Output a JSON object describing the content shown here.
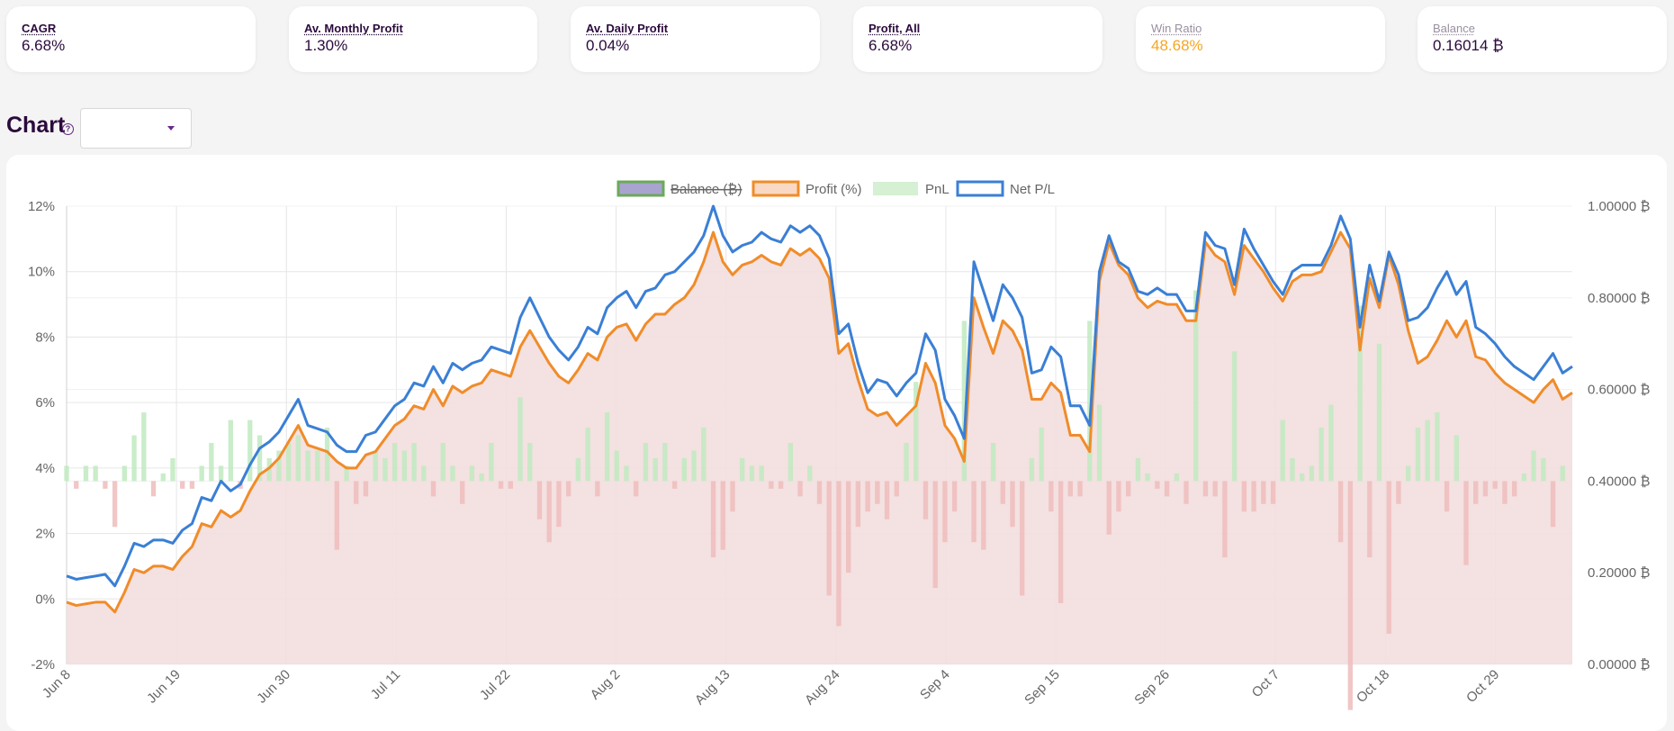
{
  "stats": {
    "cagr": {
      "label": "CAGR",
      "value": "6.68%"
    },
    "monthly": {
      "label": "Av. Monthly Profit",
      "value": "1.30%"
    },
    "daily": {
      "label": "Av. Daily Profit",
      "value": "0.04%"
    },
    "profit_all": {
      "label": "Profit, All",
      "value": "6.68%"
    },
    "win_ratio": {
      "label": "Win Ratio",
      "value": "48.68%"
    },
    "balance": {
      "label": "Balance",
      "value": "0.16014 ₿"
    }
  },
  "chart_section": {
    "title": "Chart",
    "help_icon": "question-circle-icon",
    "dropdown_value": ""
  },
  "colors": {
    "net": "#3a7fd5",
    "profit": "#f08c2a",
    "area_fill": "#f3dede",
    "pnl_pos": "#bfeabf",
    "pnl_neg": "#efbcbc",
    "balance": "#a9a3d0"
  },
  "chart_data": {
    "type": "line",
    "legend": [
      {
        "name": "Balance (₿)",
        "hidden": true
      },
      {
        "name": "Profit (%)"
      },
      {
        "name": "PnL"
      },
      {
        "name": "Net P/L"
      }
    ],
    "legend_position": "top",
    "x_ticks": [
      "Jun 8",
      "Jun 19",
      "Jun 30",
      "Jul 11",
      "Jul 22",
      "Aug 2",
      "Aug 13",
      "Aug 24",
      "Sep 4",
      "Sep 15",
      "Sep 26",
      "Oct 7",
      "Oct 18",
      "Oct 29"
    ],
    "y_left_ticks": [
      "12%",
      "10%",
      "8%",
      "6%",
      "4%",
      "2%",
      "0%",
      "-2%"
    ],
    "y_left_range": [
      -2,
      12
    ],
    "y_right_ticks": [
      "1.00000 ₿",
      "0.80000 ₿",
      "0.60000 ₿",
      "0.40000 ₿",
      "0.20000 ₿",
      "0.00000 ₿"
    ],
    "y_right_range": [
      0,
      1
    ],
    "grid": true,
    "series": [
      {
        "name": "Profit (%)",
        "values": [
          -0.1,
          -0.2,
          -0.15,
          -0.1,
          -0.1,
          -0.4,
          0.2,
          0.9,
          0.8,
          1.0,
          1.0,
          0.9,
          1.3,
          1.6,
          2.3,
          2.2,
          2.7,
          2.5,
          2.7,
          3.3,
          3.8,
          4.0,
          4.3,
          4.8,
          5.3,
          4.7,
          4.6,
          4.5,
          4.2,
          4.0,
          4.0,
          4.4,
          4.5,
          4.9,
          5.3,
          5.5,
          5.9,
          5.8,
          6.4,
          5.9,
          6.5,
          6.3,
          6.5,
          6.6,
          7.0,
          6.9,
          6.8,
          7.7,
          8.2,
          7.7,
          7.2,
          6.8,
          6.6,
          7.0,
          7.5,
          7.3,
          8.0,
          8.3,
          8.4,
          7.9,
          8.4,
          8.7,
          8.7,
          9.0,
          9.2,
          9.6,
          10.3,
          11.2,
          10.3,
          9.9,
          10.2,
          10.3,
          10.5,
          10.3,
          10.2,
          10.7,
          10.5,
          10.7,
          10.4,
          9.8,
          7.5,
          7.8,
          6.7,
          5.8,
          5.6,
          5.7,
          5.3,
          5.6,
          5.9,
          7.2,
          6.6,
          5.3,
          4.9,
          4.2,
          9.2,
          8.3,
          7.5,
          8.5,
          8.2,
          7.6,
          6.1,
          6.1,
          6.6,
          6.3,
          5.0,
          5.0,
          4.5,
          9.7,
          10.9,
          10.2,
          9.9,
          9.2,
          8.9,
          9.1,
          9.0,
          9.0,
          8.5,
          8.5,
          10.9,
          10.5,
          10.3,
          9.3,
          10.8,
          10.4,
          10.0,
          9.5,
          9.1,
          9.7,
          9.9,
          9.9,
          10.0,
          10.6,
          11.2,
          10.7,
          7.6,
          9.8,
          8.9,
          10.5,
          9.6,
          8.2,
          7.2,
          7.4,
          7.9,
          8.5,
          8.0,
          8.5,
          7.4,
          7.3,
          6.9,
          6.6,
          6.4,
          6.2,
          6.0,
          6.4,
          6.7,
          6.1,
          6.3
        ]
      },
      {
        "name": "Net P/L",
        "values": [
          0.7,
          0.6,
          0.65,
          0.7,
          0.75,
          0.4,
          1.0,
          1.7,
          1.6,
          1.8,
          1.8,
          1.7,
          2.1,
          2.3,
          3.1,
          3.0,
          3.6,
          3.3,
          3.5,
          4.1,
          4.6,
          4.8,
          5.1,
          5.6,
          6.1,
          5.3,
          5.2,
          5.1,
          4.7,
          4.5,
          4.5,
          5.0,
          5.1,
          5.5,
          5.9,
          6.1,
          6.6,
          6.5,
          7.1,
          6.6,
          7.2,
          7.0,
          7.2,
          7.3,
          7.7,
          7.6,
          7.5,
          8.6,
          9.2,
          8.6,
          8.0,
          7.6,
          7.3,
          7.7,
          8.3,
          8.1,
          8.9,
          9.2,
          9.4,
          8.9,
          9.4,
          9.5,
          9.9,
          10.0,
          10.3,
          10.6,
          11.1,
          12.0,
          11.1,
          10.6,
          10.8,
          10.9,
          11.2,
          11.0,
          10.9,
          11.4,
          11.2,
          11.4,
          11.1,
          10.4,
          8.1,
          8.4,
          7.2,
          6.3,
          6.7,
          6.6,
          6.2,
          6.6,
          6.9,
          8.1,
          7.6,
          6.1,
          5.6,
          4.9,
          10.3,
          9.4,
          8.5,
          9.6,
          9.2,
          8.6,
          6.9,
          7.0,
          7.7,
          7.4,
          5.9,
          5.9,
          5.3,
          10.0,
          11.1,
          10.3,
          10.1,
          9.4,
          9.3,
          9.5,
          9.3,
          9.3,
          8.8,
          8.8,
          11.2,
          10.8,
          10.7,
          9.6,
          11.3,
          10.7,
          10.2,
          9.7,
          9.3,
          10.0,
          10.2,
          10.2,
          10.2,
          10.8,
          11.7,
          11.0,
          8.3,
          10.2,
          9.1,
          10.6,
          9.9,
          8.5,
          8.6,
          8.9,
          9.5,
          10.0,
          9.3,
          9.7,
          8.3,
          8.1,
          7.8,
          7.4,
          7.1,
          6.9,
          6.7,
          7.1,
          7.5,
          6.9,
          7.1
        ]
      },
      {
        "name": "PnL",
        "values": [
          0.02,
          -0.01,
          0.02,
          0.02,
          -0.01,
          -0.06,
          0.02,
          0.06,
          0.09,
          -0.02,
          0.01,
          0.03,
          -0.01,
          -0.01,
          0.02,
          0.05,
          0.02,
          0.08,
          -0.01,
          0.08,
          0.06,
          0.03,
          0.04,
          0.05,
          0.06,
          0.04,
          0.04,
          0.07,
          -0.09,
          0.02,
          -0.03,
          -0.02,
          0.04,
          0.03,
          0.05,
          0.04,
          0.05,
          0.02,
          -0.02,
          0.05,
          0.02,
          -0.03,
          0.02,
          0.01,
          0.05,
          -0.01,
          -0.01,
          0.11,
          0.05,
          -0.05,
          -0.08,
          -0.06,
          -0.02,
          0.03,
          0.07,
          -0.02,
          0.09,
          0.04,
          0.02,
          -0.02,
          0.05,
          0.03,
          0.05,
          -0.01,
          0.03,
          0.04,
          0.07,
          -0.1,
          -0.09,
          -0.04,
          0.03,
          0.02,
          0.02,
          -0.01,
          -0.01,
          0.05,
          -0.02,
          0.02,
          -0.03,
          -0.15,
          -0.19,
          -0.12,
          -0.06,
          -0.04,
          -0.03,
          -0.05,
          -0.02,
          0.05,
          0.13,
          -0.05,
          -0.14,
          -0.08,
          -0.04,
          0.21,
          -0.08,
          -0.09,
          0.05,
          -0.03,
          -0.06,
          -0.15,
          0.03,
          0.07,
          -0.04,
          -0.16,
          -0.02,
          -0.02,
          0.21,
          0.1,
          -0.07,
          -0.04,
          -0.02,
          0.03,
          0.01,
          -0.01,
          -0.02,
          0.01,
          -0.03,
          0.25,
          -0.02,
          -0.02,
          -0.1,
          0.17,
          -0.04,
          -0.04,
          -0.03,
          -0.03,
          0.08,
          0.03,
          0.01,
          0.02,
          0.07,
          0.1,
          -0.08,
          -0.3,
          0.23,
          -0.1,
          0.18,
          -0.2,
          -0.03,
          0.02,
          0.07,
          0.08,
          0.09,
          -0.04,
          0.06,
          -0.11,
          -0.03,
          -0.02,
          -0.01,
          -0.03,
          -0.02,
          0.01,
          0.04,
          0.03,
          -0.06,
          0.02
        ]
      }
    ]
  }
}
